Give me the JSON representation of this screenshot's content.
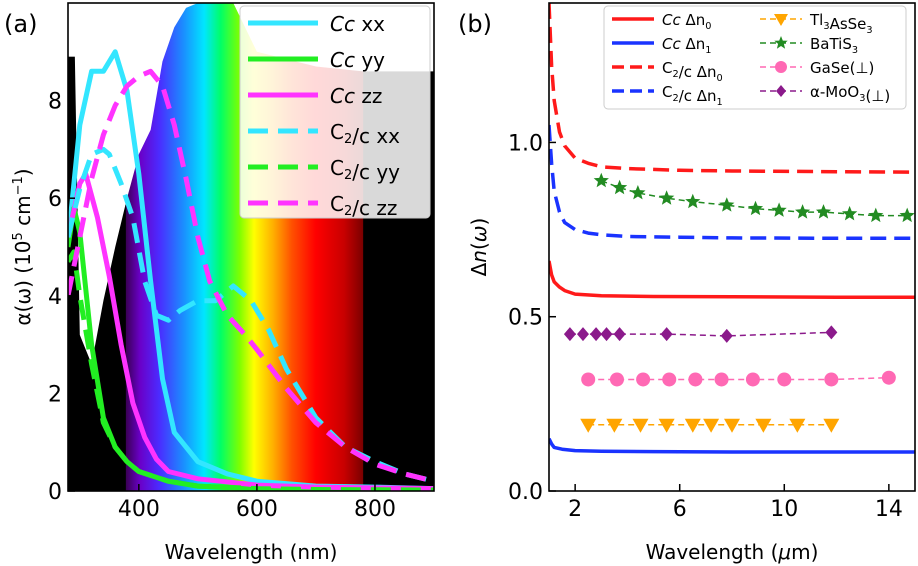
{
  "chart_data": [
    {
      "panel_label": "(a)",
      "type": "line",
      "xlabel": "Wavelength (nm)",
      "ylabel": "α(ω) (10^5 cm^-1)",
      "xlim": [
        280,
        900
      ],
      "ylim": [
        0,
        10
      ],
      "xticks": [
        400,
        600,
        800
      ],
      "yticks": [
        0,
        2,
        4,
        6,
        8
      ],
      "grid": false,
      "legend_position": "top-right",
      "background": "solar spectrum with visible rainbow band (approx. 380-780 nm) over black",
      "series": [
        {
          "name": "Cc xx",
          "color": "#33e6ff",
          "style": "solid",
          "x": [
            280,
            300,
            320,
            340,
            360,
            380,
            400,
            420,
            440,
            460,
            500,
            550,
            600,
            700,
            800,
            900
          ],
          "y": [
            5.1,
            7.5,
            8.6,
            8.6,
            9.0,
            8.2,
            6.5,
            4.3,
            2.3,
            1.2,
            0.6,
            0.35,
            0.2,
            0.1,
            0.08,
            0.05
          ]
        },
        {
          "name": "Cc yy",
          "color": "#22ee22",
          "style": "solid",
          "x": [
            280,
            290,
            300,
            320,
            340,
            360,
            380,
            400,
            450,
            500,
            600,
            700,
            900
          ],
          "y": [
            5.0,
            5.8,
            5.3,
            3.0,
            1.5,
            0.9,
            0.6,
            0.4,
            0.2,
            0.1,
            0.05,
            0.03,
            0.02
          ]
        },
        {
          "name": "Cc zz",
          "color": "#ff33ff",
          "style": "solid",
          "x": [
            280,
            300,
            310,
            330,
            350,
            370,
            390,
            410,
            430,
            450,
            500,
            600,
            700,
            900
          ],
          "y": [
            5.2,
            6.3,
            6.5,
            5.6,
            4.4,
            3.0,
            1.8,
            1.1,
            0.65,
            0.4,
            0.25,
            0.12,
            0.08,
            0.05
          ]
        },
        {
          "name": "C2/c xx",
          "color": "#33e6ff",
          "style": "dashed",
          "x": [
            280,
            300,
            320,
            340,
            350,
            370,
            390,
            410,
            430,
            450,
            470,
            500,
            530,
            560,
            590,
            620,
            650,
            700,
            750,
            800,
            850,
            900
          ],
          "y": [
            5.2,
            6.2,
            6.9,
            7.0,
            6.9,
            6.3,
            5.6,
            4.3,
            3.6,
            3.5,
            3.7,
            3.9,
            3.9,
            4.2,
            3.9,
            3.3,
            2.5,
            1.5,
            0.9,
            0.6,
            0.35,
            0.2
          ]
        },
        {
          "name": "C2/c yy",
          "color": "#22ee22",
          "style": "dashed",
          "x": [
            280,
            290,
            300,
            320,
            340,
            360,
            380,
            400,
            450,
            500,
            600,
            700,
            900
          ],
          "y": [
            4.7,
            4.9,
            4.0,
            2.6,
            1.4,
            0.9,
            0.6,
            0.4,
            0.2,
            0.1,
            0.05,
            0.03,
            0.02
          ]
        },
        {
          "name": "C2/c zz",
          "color": "#ff33ff",
          "style": "dashed",
          "x": [
            280,
            300,
            320,
            340,
            360,
            380,
            400,
            420,
            440,
            460,
            480,
            500,
            520,
            550,
            580,
            600,
            650,
            700,
            750,
            800,
            850,
            900
          ],
          "y": [
            4.0,
            5.2,
            6.4,
            7.3,
            7.9,
            8.3,
            8.5,
            8.6,
            8.3,
            7.5,
            6.4,
            5.2,
            4.3,
            3.6,
            3.2,
            2.9,
            2.1,
            1.4,
            0.9,
            0.55,
            0.35,
            0.2
          ]
        }
      ]
    },
    {
      "panel_label": "(b)",
      "type": "line",
      "xlabel": "Wavelength (μm)",
      "ylabel": "Δn(ω)",
      "xlim": [
        1,
        15
      ],
      "ylim": [
        0,
        1.4
      ],
      "xticks": [
        2,
        6,
        10,
        14
      ],
      "yticks": [
        0.0,
        0.5,
        1.0
      ],
      "grid": false,
      "legend_position": "top-right",
      "series": [
        {
          "name": "Cc Δn0",
          "color": "#ff1a1a",
          "style": "solid",
          "x": [
            1.0,
            1.1,
            1.2,
            1.4,
            1.6,
            2,
            3,
            5,
            8,
            12,
            15
          ],
          "y": [
            0.66,
            0.62,
            0.6,
            0.585,
            0.575,
            0.565,
            0.56,
            0.558,
            0.557,
            0.556,
            0.556
          ]
        },
        {
          "name": "Cc Δn1",
          "color": "#1a33ff",
          "style": "solid",
          "x": [
            1.0,
            1.1,
            1.2,
            1.5,
            2,
            3,
            5,
            8,
            12,
            15
          ],
          "y": [
            0.15,
            0.135,
            0.125,
            0.12,
            0.116,
            0.114,
            0.113,
            0.112,
            0.112,
            0.112
          ]
        },
        {
          "name": "C2/c Δn0",
          "color": "#ff1a1a",
          "style": "dashed",
          "x": [
            1.0,
            1.1,
            1.2,
            1.4,
            1.6,
            2,
            2.5,
            3,
            4,
            6,
            8,
            12,
            15
          ],
          "y": [
            1.4,
            1.22,
            1.12,
            1.03,
            0.99,
            0.955,
            0.94,
            0.93,
            0.925,
            0.92,
            0.918,
            0.916,
            0.915
          ]
        },
        {
          "name": "C2/c Δn1",
          "color": "#1a33ff",
          "style": "dashed",
          "x": [
            1.0,
            1.1,
            1.2,
            1.4,
            1.6,
            2,
            2.5,
            3,
            4,
            6,
            8,
            12,
            15
          ],
          "y": [
            1.05,
            0.94,
            0.86,
            0.8,
            0.77,
            0.75,
            0.74,
            0.735,
            0.73,
            0.728,
            0.726,
            0.725,
            0.725
          ]
        },
        {
          "name": "Tl3AsSe3",
          "color": "#ffa500",
          "marker": "triangle-down",
          "style": "dashed",
          "x": [
            2.5,
            3.5,
            4.5,
            5.5,
            6.5,
            7.2,
            8.0,
            9.2,
            10.5,
            11.8
          ],
          "y": [
            0.19,
            0.19,
            0.19,
            0.19,
            0.19,
            0.19,
            0.19,
            0.19,
            0.19,
            0.19
          ]
        },
        {
          "name": "BaTiS3",
          "color": "#228b22",
          "marker": "star",
          "style": "dashed",
          "x": [
            3.0,
            3.7,
            4.4,
            5.5,
            6.5,
            7.8,
            8.9,
            9.8,
            10.7,
            11.5,
            12.5,
            13.5,
            14.7
          ],
          "y": [
            0.89,
            0.87,
            0.855,
            0.84,
            0.83,
            0.82,
            0.81,
            0.805,
            0.8,
            0.8,
            0.795,
            0.79,
            0.79
          ]
        },
        {
          "name": "GaSe(⊥)",
          "color": "#ff69b4",
          "marker": "circle",
          "style": "dashed",
          "x": [
            2.5,
            3.6,
            4.6,
            5.6,
            6.6,
            7.6,
            8.8,
            10.0,
            11.8,
            14.0
          ],
          "y": [
            0.32,
            0.32,
            0.32,
            0.32,
            0.32,
            0.32,
            0.32,
            0.32,
            0.32,
            0.325
          ]
        },
        {
          "name": "α-MoO3(⊥)",
          "color": "#8b1a8b",
          "marker": "diamond",
          "style": "dashed",
          "x": [
            1.8,
            2.3,
            2.8,
            3.2,
            3.7,
            5.5,
            7.8,
            11.8
          ],
          "y": [
            0.45,
            0.45,
            0.45,
            0.45,
            0.45,
            0.45,
            0.445,
            0.455
          ]
        }
      ]
    }
  ]
}
